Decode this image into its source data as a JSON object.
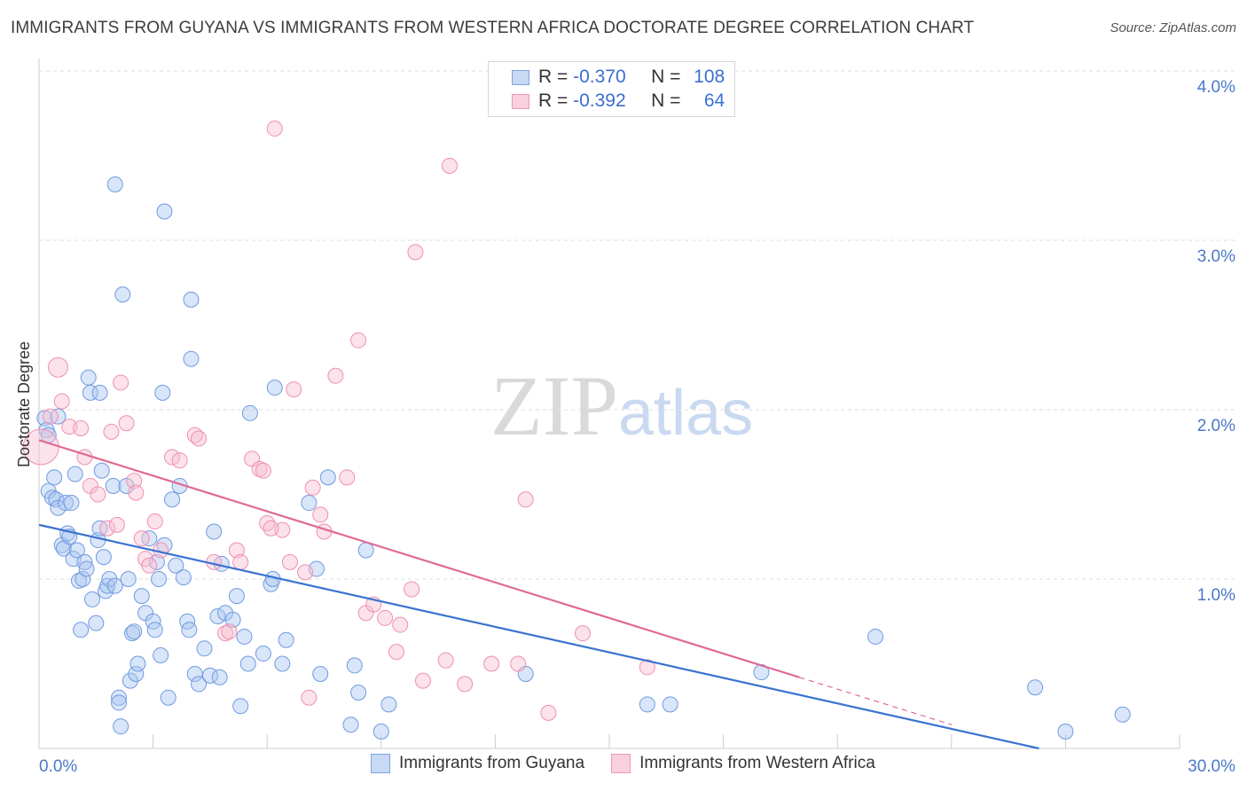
{
  "title": "IMMIGRANTS FROM GUYANA VS IMMIGRANTS FROM WESTERN AFRICA DOCTORATE DEGREE CORRELATION CHART",
  "source": "Source: ZipAtlas.com",
  "watermark": {
    "zip": "ZIP",
    "atlas": "atlas"
  },
  "legend_top": {
    "rows": [
      {
        "r_label": "R =",
        "r_value": "-0.370",
        "n_label": "N =",
        "n_value": "108"
      },
      {
        "r_label": "R =",
        "r_value": "-0.392",
        "n_label": "N =",
        "n_value": "64"
      }
    ]
  },
  "chart_data": {
    "type": "scatter",
    "title": "IMMIGRANTS FROM GUYANA VS IMMIGRANTS FROM WESTERN AFRICA DOCTORATE DEGREE CORRELATION CHART",
    "xlabel": "",
    "ylabel": "Doctorate Degree",
    "xlim": [
      0,
      30
    ],
    "ylim": [
      0,
      4.0
    ],
    "x_tick_labels": [
      "0.0%",
      "30.0%"
    ],
    "y_tick_labels": [
      "1.0%",
      "2.0%",
      "3.0%",
      "4.0%"
    ],
    "y_ticks": [
      1.0,
      2.0,
      3.0,
      4.0
    ],
    "colors": {
      "guyana": "#6f9be0",
      "western_africa": "#f08fb0",
      "guyana_line": "#3a73d0",
      "western_africa_line": "#e06a94"
    },
    "series": [
      {
        "name": "Immigrants from Guyana",
        "r": -0.37,
        "n": 108,
        "trend": {
          "x": [
            0,
            26.3
          ],
          "y": [
            1.32,
            0.0
          ]
        },
        "points": [
          [
            0.15,
            1.95
          ],
          [
            0.2,
            1.88
          ],
          [
            0.25,
            1.85
          ],
          [
            0.5,
            1.96
          ],
          [
            0.25,
            1.52
          ],
          [
            0.35,
            1.48
          ],
          [
            0.4,
            1.6
          ],
          [
            0.45,
            1.47
          ],
          [
            0.5,
            1.42
          ],
          [
            0.6,
            1.2
          ],
          [
            0.65,
            1.18
          ],
          [
            0.7,
            1.45
          ],
          [
            0.75,
            1.27
          ],
          [
            0.8,
            1.25
          ],
          [
            0.85,
            1.45
          ],
          [
            0.9,
            1.12
          ],
          [
            0.95,
            1.62
          ],
          [
            1.0,
            1.17
          ],
          [
            1.05,
            0.99
          ],
          [
            1.1,
            0.7
          ],
          [
            1.15,
            1.0
          ],
          [
            1.2,
            1.1
          ],
          [
            1.25,
            1.06
          ],
          [
            1.3,
            2.19
          ],
          [
            1.35,
            2.1
          ],
          [
            1.4,
            0.88
          ],
          [
            1.5,
            0.74
          ],
          [
            1.55,
            1.23
          ],
          [
            1.6,
            2.1
          ],
          [
            1.65,
            1.64
          ],
          [
            1.7,
            1.13
          ],
          [
            1.75,
            0.93
          ],
          [
            1.8,
            0.96
          ],
          [
            1.85,
            1.0
          ],
          [
            1.95,
            1.55
          ],
          [
            2.0,
            0.96
          ],
          [
            2.1,
            0.3
          ],
          [
            2.15,
            0.13
          ],
          [
            2.2,
            2.68
          ],
          [
            2.3,
            1.55
          ],
          [
            2.35,
            1.0
          ],
          [
            2.4,
            0.4
          ],
          [
            2.45,
            0.68
          ],
          [
            2.5,
            0.69
          ],
          [
            2.55,
            0.44
          ],
          [
            2.6,
            0.5
          ],
          [
            2.7,
            0.9
          ],
          [
            2.8,
            0.8
          ],
          [
            2.9,
            1.24
          ],
          [
            3.0,
            0.75
          ],
          [
            3.05,
            0.7
          ],
          [
            3.1,
            1.1
          ],
          [
            3.15,
            1.0
          ],
          [
            3.2,
            0.55
          ],
          [
            3.25,
            2.1
          ],
          [
            3.3,
            1.2
          ],
          [
            3.4,
            0.3
          ],
          [
            3.5,
            1.47
          ],
          [
            3.6,
            1.08
          ],
          [
            3.7,
            1.55
          ],
          [
            3.8,
            1.01
          ],
          [
            3.9,
            0.75
          ],
          [
            3.95,
            0.7
          ],
          [
            4.0,
            2.3
          ],
          [
            4.1,
            0.44
          ],
          [
            4.2,
            0.38
          ],
          [
            4.35,
            0.59
          ],
          [
            4.5,
            0.43
          ],
          [
            4.6,
            1.28
          ],
          [
            4.7,
            0.78
          ],
          [
            4.75,
            0.42
          ],
          [
            4.8,
            1.09
          ],
          [
            4.9,
            0.8
          ],
          [
            5.1,
            0.76
          ],
          [
            5.2,
            0.9
          ],
          [
            5.3,
            0.25
          ],
          [
            5.4,
            0.66
          ],
          [
            5.5,
            0.5
          ],
          [
            5.55,
            1.98
          ],
          [
            5.9,
            0.56
          ],
          [
            6.1,
            0.97
          ],
          [
            6.15,
            1.0
          ],
          [
            6.2,
            2.13
          ],
          [
            6.4,
            0.5
          ],
          [
            6.5,
            0.64
          ],
          [
            7.1,
            1.45
          ],
          [
            7.3,
            1.06
          ],
          [
            7.4,
            0.44
          ],
          [
            7.6,
            1.6
          ],
          [
            8.2,
            0.14
          ],
          [
            8.3,
            0.49
          ],
          [
            8.4,
            0.33
          ],
          [
            8.6,
            1.17
          ],
          [
            9.0,
            0.1
          ],
          [
            9.2,
            0.26
          ],
          [
            2.0,
            3.33
          ],
          [
            3.3,
            3.17
          ],
          [
            4.0,
            2.65
          ],
          [
            2.1,
            0.27
          ],
          [
            1.6,
            1.3
          ],
          [
            12.8,
            0.44
          ],
          [
            16.0,
            0.26
          ],
          [
            22.0,
            0.66
          ],
          [
            16.6,
            0.26
          ],
          [
            19.0,
            0.45
          ],
          [
            26.2,
            0.36
          ],
          [
            28.5,
            0.2
          ],
          [
            27.0,
            0.1
          ]
        ]
      },
      {
        "name": "Immigrants from Western Africa",
        "r": -0.392,
        "n": 64,
        "trend": {
          "x": [
            0,
            20.0
          ],
          "y": [
            1.82,
            0.42
          ]
        },
        "points": [
          [
            0.05,
            1.78
          ],
          [
            0.3,
            1.96
          ],
          [
            0.5,
            2.25
          ],
          [
            0.6,
            2.05
          ],
          [
            0.8,
            1.9
          ],
          [
            1.1,
            1.89
          ],
          [
            1.2,
            1.72
          ],
          [
            1.35,
            1.55
          ],
          [
            1.55,
            1.5
          ],
          [
            1.8,
            1.3
          ],
          [
            1.9,
            1.87
          ],
          [
            2.05,
            1.32
          ],
          [
            2.15,
            2.16
          ],
          [
            2.3,
            1.92
          ],
          [
            2.5,
            1.58
          ],
          [
            2.55,
            1.51
          ],
          [
            2.7,
            1.24
          ],
          [
            2.8,
            1.12
          ],
          [
            2.9,
            1.08
          ],
          [
            3.05,
            1.34
          ],
          [
            3.2,
            1.17
          ],
          [
            3.5,
            1.72
          ],
          [
            3.7,
            1.7
          ],
          [
            4.1,
            1.85
          ],
          [
            4.2,
            1.83
          ],
          [
            4.6,
            1.1
          ],
          [
            4.9,
            0.68
          ],
          [
            5.0,
            0.69
          ],
          [
            5.2,
            1.17
          ],
          [
            5.3,
            1.1
          ],
          [
            5.6,
            1.71
          ],
          [
            5.8,
            1.65
          ],
          [
            5.9,
            1.64
          ],
          [
            6.0,
            1.33
          ],
          [
            6.4,
            1.29
          ],
          [
            6.6,
            1.1
          ],
          [
            6.7,
            2.12
          ],
          [
            7.0,
            1.04
          ],
          [
            7.2,
            1.54
          ],
          [
            7.4,
            1.38
          ],
          [
            7.5,
            1.28
          ],
          [
            7.8,
            2.2
          ],
          [
            8.1,
            1.6
          ],
          [
            8.4,
            2.41
          ],
          [
            8.6,
            0.8
          ],
          [
            8.8,
            0.85
          ],
          [
            9.1,
            0.77
          ],
          [
            9.4,
            0.57
          ],
          [
            9.8,
            0.94
          ],
          [
            10.1,
            0.4
          ],
          [
            10.7,
            0.52
          ],
          [
            11.2,
            0.38
          ],
          [
            11.9,
            0.5
          ],
          [
            12.6,
            0.5
          ],
          [
            12.8,
            1.47
          ],
          [
            13.4,
            0.21
          ],
          [
            14.3,
            0.68
          ],
          [
            16.0,
            0.48
          ],
          [
            6.2,
            3.66
          ],
          [
            10.8,
            3.44
          ],
          [
            9.9,
            2.93
          ],
          [
            9.5,
            0.73
          ],
          [
            6.1,
            1.3
          ],
          [
            7.1,
            0.3
          ]
        ]
      }
    ]
  },
  "bottom_legend": {
    "items": [
      "Immigrants from Guyana",
      "Immigrants from Western Africa"
    ]
  }
}
